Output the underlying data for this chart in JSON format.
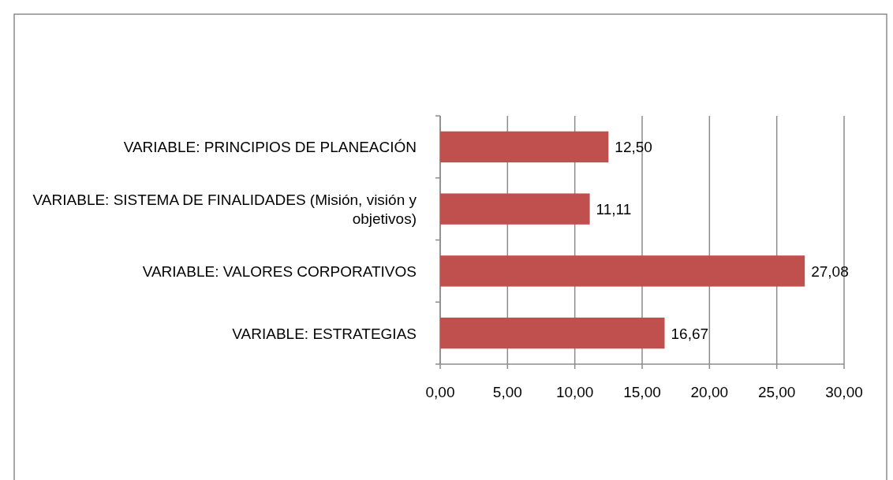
{
  "chart_data": {
    "type": "bar",
    "orientation": "horizontal",
    "categories": [
      "VARIABLE: PRINCIPIOS DE PLANEACIÓN",
      "VARIABLE: SISTEMA DE FINALIDADES (Misión, visión y objetivos)",
      "VARIABLE: VALORES CORPORATIVOS",
      "VARIABLE: ESTRATEGIAS"
    ],
    "values": [
      12.5,
      11.11,
      27.08,
      16.67
    ],
    "value_labels": [
      "12,50",
      "11,11",
      "27,08",
      "16,67"
    ],
    "color": "#c0504d",
    "xlim": [
      0,
      30
    ],
    "xticks": [
      {
        "value": 0,
        "label": "0,00"
      },
      {
        "value": 5,
        "label": "5,00"
      },
      {
        "value": 10,
        "label": "10,00"
      },
      {
        "value": 15,
        "label": "15,00"
      },
      {
        "value": 20,
        "label": "20,00"
      },
      {
        "value": 25,
        "label": "25,00"
      },
      {
        "value": 30,
        "label": "30,00"
      }
    ],
    "grid": "x"
  }
}
